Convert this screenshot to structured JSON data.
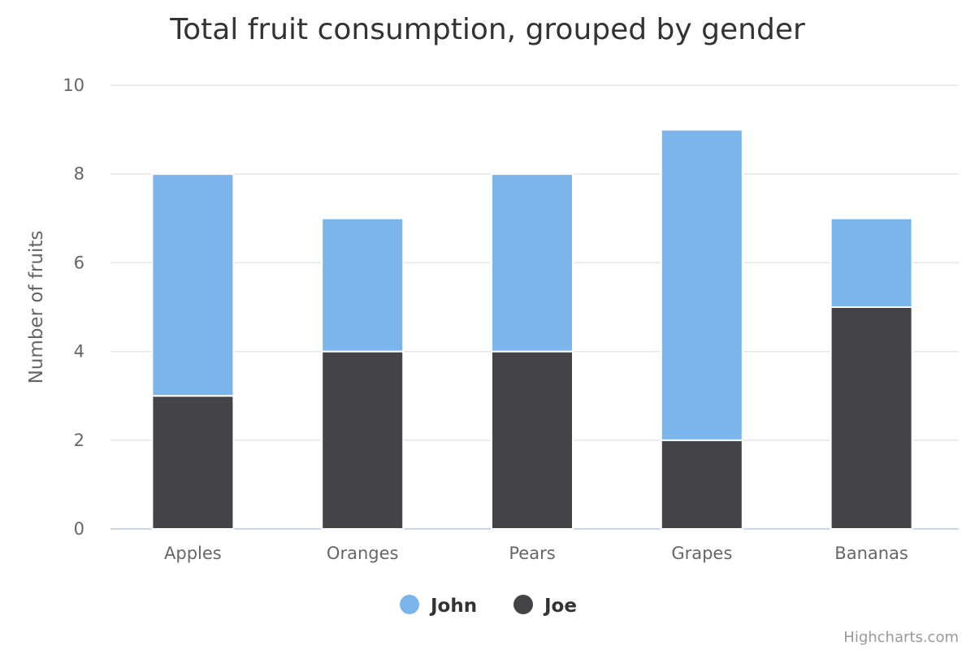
{
  "chart_data": {
    "type": "bar",
    "stacked": true,
    "title": "Total fruit consumption, grouped by gender",
    "ylabel": "Number of fruits",
    "xlabel": "",
    "categories": [
      "Apples",
      "Oranges",
      "Pears",
      "Grapes",
      "Bananas"
    ],
    "ylim": [
      0,
      10
    ],
    "yticks": [
      0,
      2,
      4,
      6,
      8,
      10
    ],
    "grid": true,
    "legend_position": "bottom-center",
    "series": [
      {
        "name": "John",
        "color": "#7cb5ec",
        "values": [
          5,
          3,
          4,
          7,
          2
        ]
      },
      {
        "name": "Joe",
        "color": "#434348",
        "values": [
          3,
          4,
          4,
          2,
          5
        ]
      }
    ]
  },
  "credits": "Highcharts.com"
}
